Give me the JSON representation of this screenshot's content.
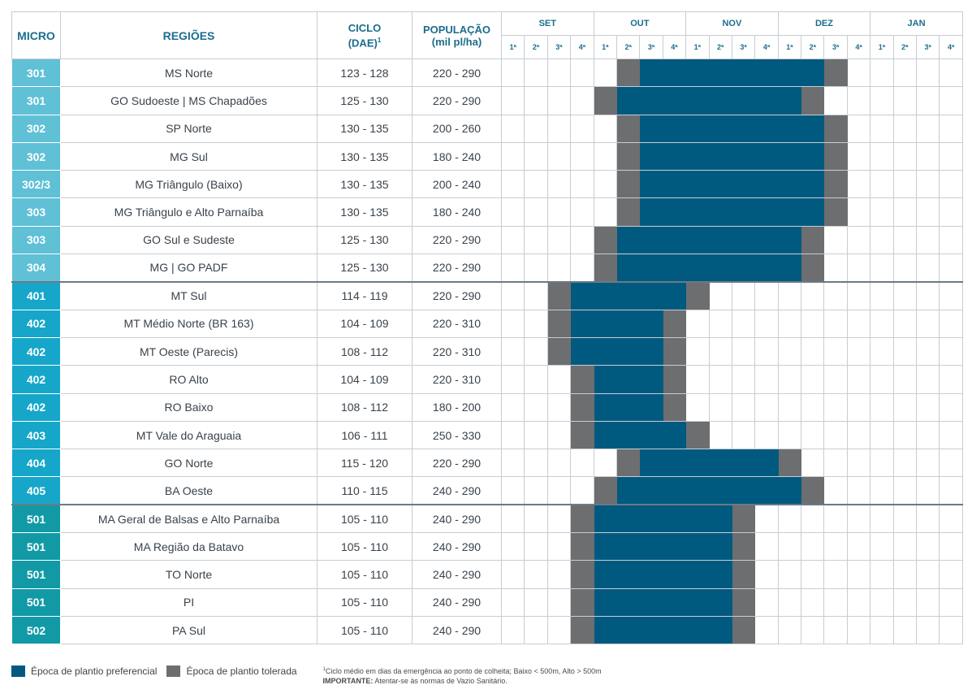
{
  "headers": {
    "micro": "MICRO",
    "regioes": "REGIÕES",
    "ciclo_line1": "CICLO",
    "ciclo_line2": "(DAE)",
    "ciclo_sup": "1",
    "populacao_line1": "POPULAÇÃO",
    "populacao_line2": "(mil pl/ha)",
    "months": [
      "SET",
      "OUT",
      "NOV",
      "DEZ",
      "JAN"
    ],
    "weeks": [
      "1ª",
      "2ª",
      "3ª",
      "4ª"
    ]
  },
  "colors": {
    "preferencial": "#005a80",
    "tolerada": "#6d6e70",
    "micro_group_3": "#5fc0d6",
    "micro_group_4": "#16a6c9",
    "micro_group_5": "#119aa6"
  },
  "rows": [
    {
      "micro": "301",
      "regiao": "MS Norte",
      "ciclo": "123 - 128",
      "populacao": "220 - 290",
      "group": 3,
      "sched": "00000T33333333T0000"
    },
    {
      "micro": "301",
      "regiao": "GO Sudoeste | MS Chapadões",
      "ciclo": "125 - 130",
      "populacao": "220 - 290",
      "group": 3,
      "sched": "0000T33333333T00000"
    },
    {
      "micro": "302",
      "regiao": "SP Norte",
      "ciclo": "130 - 135",
      "populacao": "200 - 260",
      "group": 3,
      "sched": "00000T33333333T0000"
    },
    {
      "micro": "302",
      "regiao": "MG Sul",
      "ciclo": "130 - 135",
      "populacao": "180 - 240",
      "group": 3,
      "sched": "00000T33333333T0000"
    },
    {
      "micro": "302/3",
      "regiao": "MG Triângulo (Baixo)",
      "ciclo": "130 - 135",
      "populacao": "200 - 240",
      "group": 3,
      "sched": "00000T33333333T0000"
    },
    {
      "micro": "303",
      "regiao": "MG Triângulo e Alto Parnaíba",
      "ciclo": "130 - 135",
      "populacao": "180 - 240",
      "group": 3,
      "sched": "00000T33333333T0000"
    },
    {
      "micro": "303",
      "regiao": "GO Sul e Sudeste",
      "ciclo": "125 - 130",
      "populacao": "220 - 290",
      "group": 3,
      "sched": "0000T33333333T00000"
    },
    {
      "micro": "304",
      "regiao": "MG | GO PADF",
      "ciclo": "125 - 130",
      "populacao": "220 - 290",
      "group": 3,
      "sched": "0000T33333333T00000"
    },
    {
      "micro": "401",
      "regiao": "MT Sul",
      "ciclo": "114 - 119",
      "populacao": "220 - 290",
      "group": 4,
      "sched": "00T33333T0000000000"
    },
    {
      "micro": "402",
      "regiao": "MT Médio Norte (BR 163)",
      "ciclo": "104 - 109",
      "populacao": "220 - 310",
      "group": 4,
      "sched": "00T3333T00000000000"
    },
    {
      "micro": "402",
      "regiao": "MT Oeste (Parecis)",
      "ciclo": "108 - 112",
      "populacao": "220 - 310",
      "group": 4,
      "sched": "00T3333T00000000000"
    },
    {
      "micro": "402",
      "regiao": "RO Alto",
      "ciclo": "104 - 109",
      "populacao": "220 - 310",
      "group": 4,
      "sched": "000T333T00000000000"
    },
    {
      "micro": "402",
      "regiao": "RO Baixo",
      "ciclo": "108 - 112",
      "populacao": "180 - 200",
      "group": 4,
      "sched": "000T333T00000000000"
    },
    {
      "micro": "403",
      "regiao": "MT Vale do Araguaia",
      "ciclo": "106 - 111",
      "populacao": "250 - 330",
      "group": 4,
      "sched": "000T3333T0000000000"
    },
    {
      "micro": "404",
      "regiao": "GO Norte",
      "ciclo": "115 - 120",
      "populacao": "220 - 290",
      "group": 4,
      "sched": "00000T333333T000000"
    },
    {
      "micro": "405",
      "regiao": "BA Oeste",
      "ciclo": "110 - 115",
      "populacao": "240 - 290",
      "group": 4,
      "sched": "0000T33333333T00000"
    },
    {
      "micro": "501",
      "regiao": "MA Geral de Balsas e Alto Parnaíba",
      "ciclo": "105 - 110",
      "populacao": "240 - 290",
      "group": 5,
      "sched": "000T333333T00000000"
    },
    {
      "micro": "501",
      "regiao": "MA Região da Batavo",
      "ciclo": "105 - 110",
      "populacao": "240 - 290",
      "group": 5,
      "sched": "000T333333T00000000"
    },
    {
      "micro": "501",
      "regiao": "TO Norte",
      "ciclo": "105 - 110",
      "populacao": "240 - 290",
      "group": 5,
      "sched": "000T333333T00000000"
    },
    {
      "micro": "501",
      "regiao": "PI",
      "ciclo": "105 - 110",
      "populacao": "240 - 290",
      "group": 5,
      "sched": "000T333333T00000000"
    },
    {
      "micro": "502",
      "regiao": "PA Sul",
      "ciclo": "105 - 110",
      "populacao": "240 - 290",
      "group": 5,
      "sched": "000T333333T00000000"
    }
  ],
  "legend": {
    "preferencial": "Época de plantio preferencial",
    "tolerada": "Época de plantio tolerada",
    "note_sup": "1",
    "note": "Ciclo médio em dias da emergência ao ponto de colheita; Baixo < 500m, Alto > 500m",
    "important_label": "IMPORTANTE:",
    "important_text": " Atentar-se às normas de Vazio Sanitário."
  }
}
